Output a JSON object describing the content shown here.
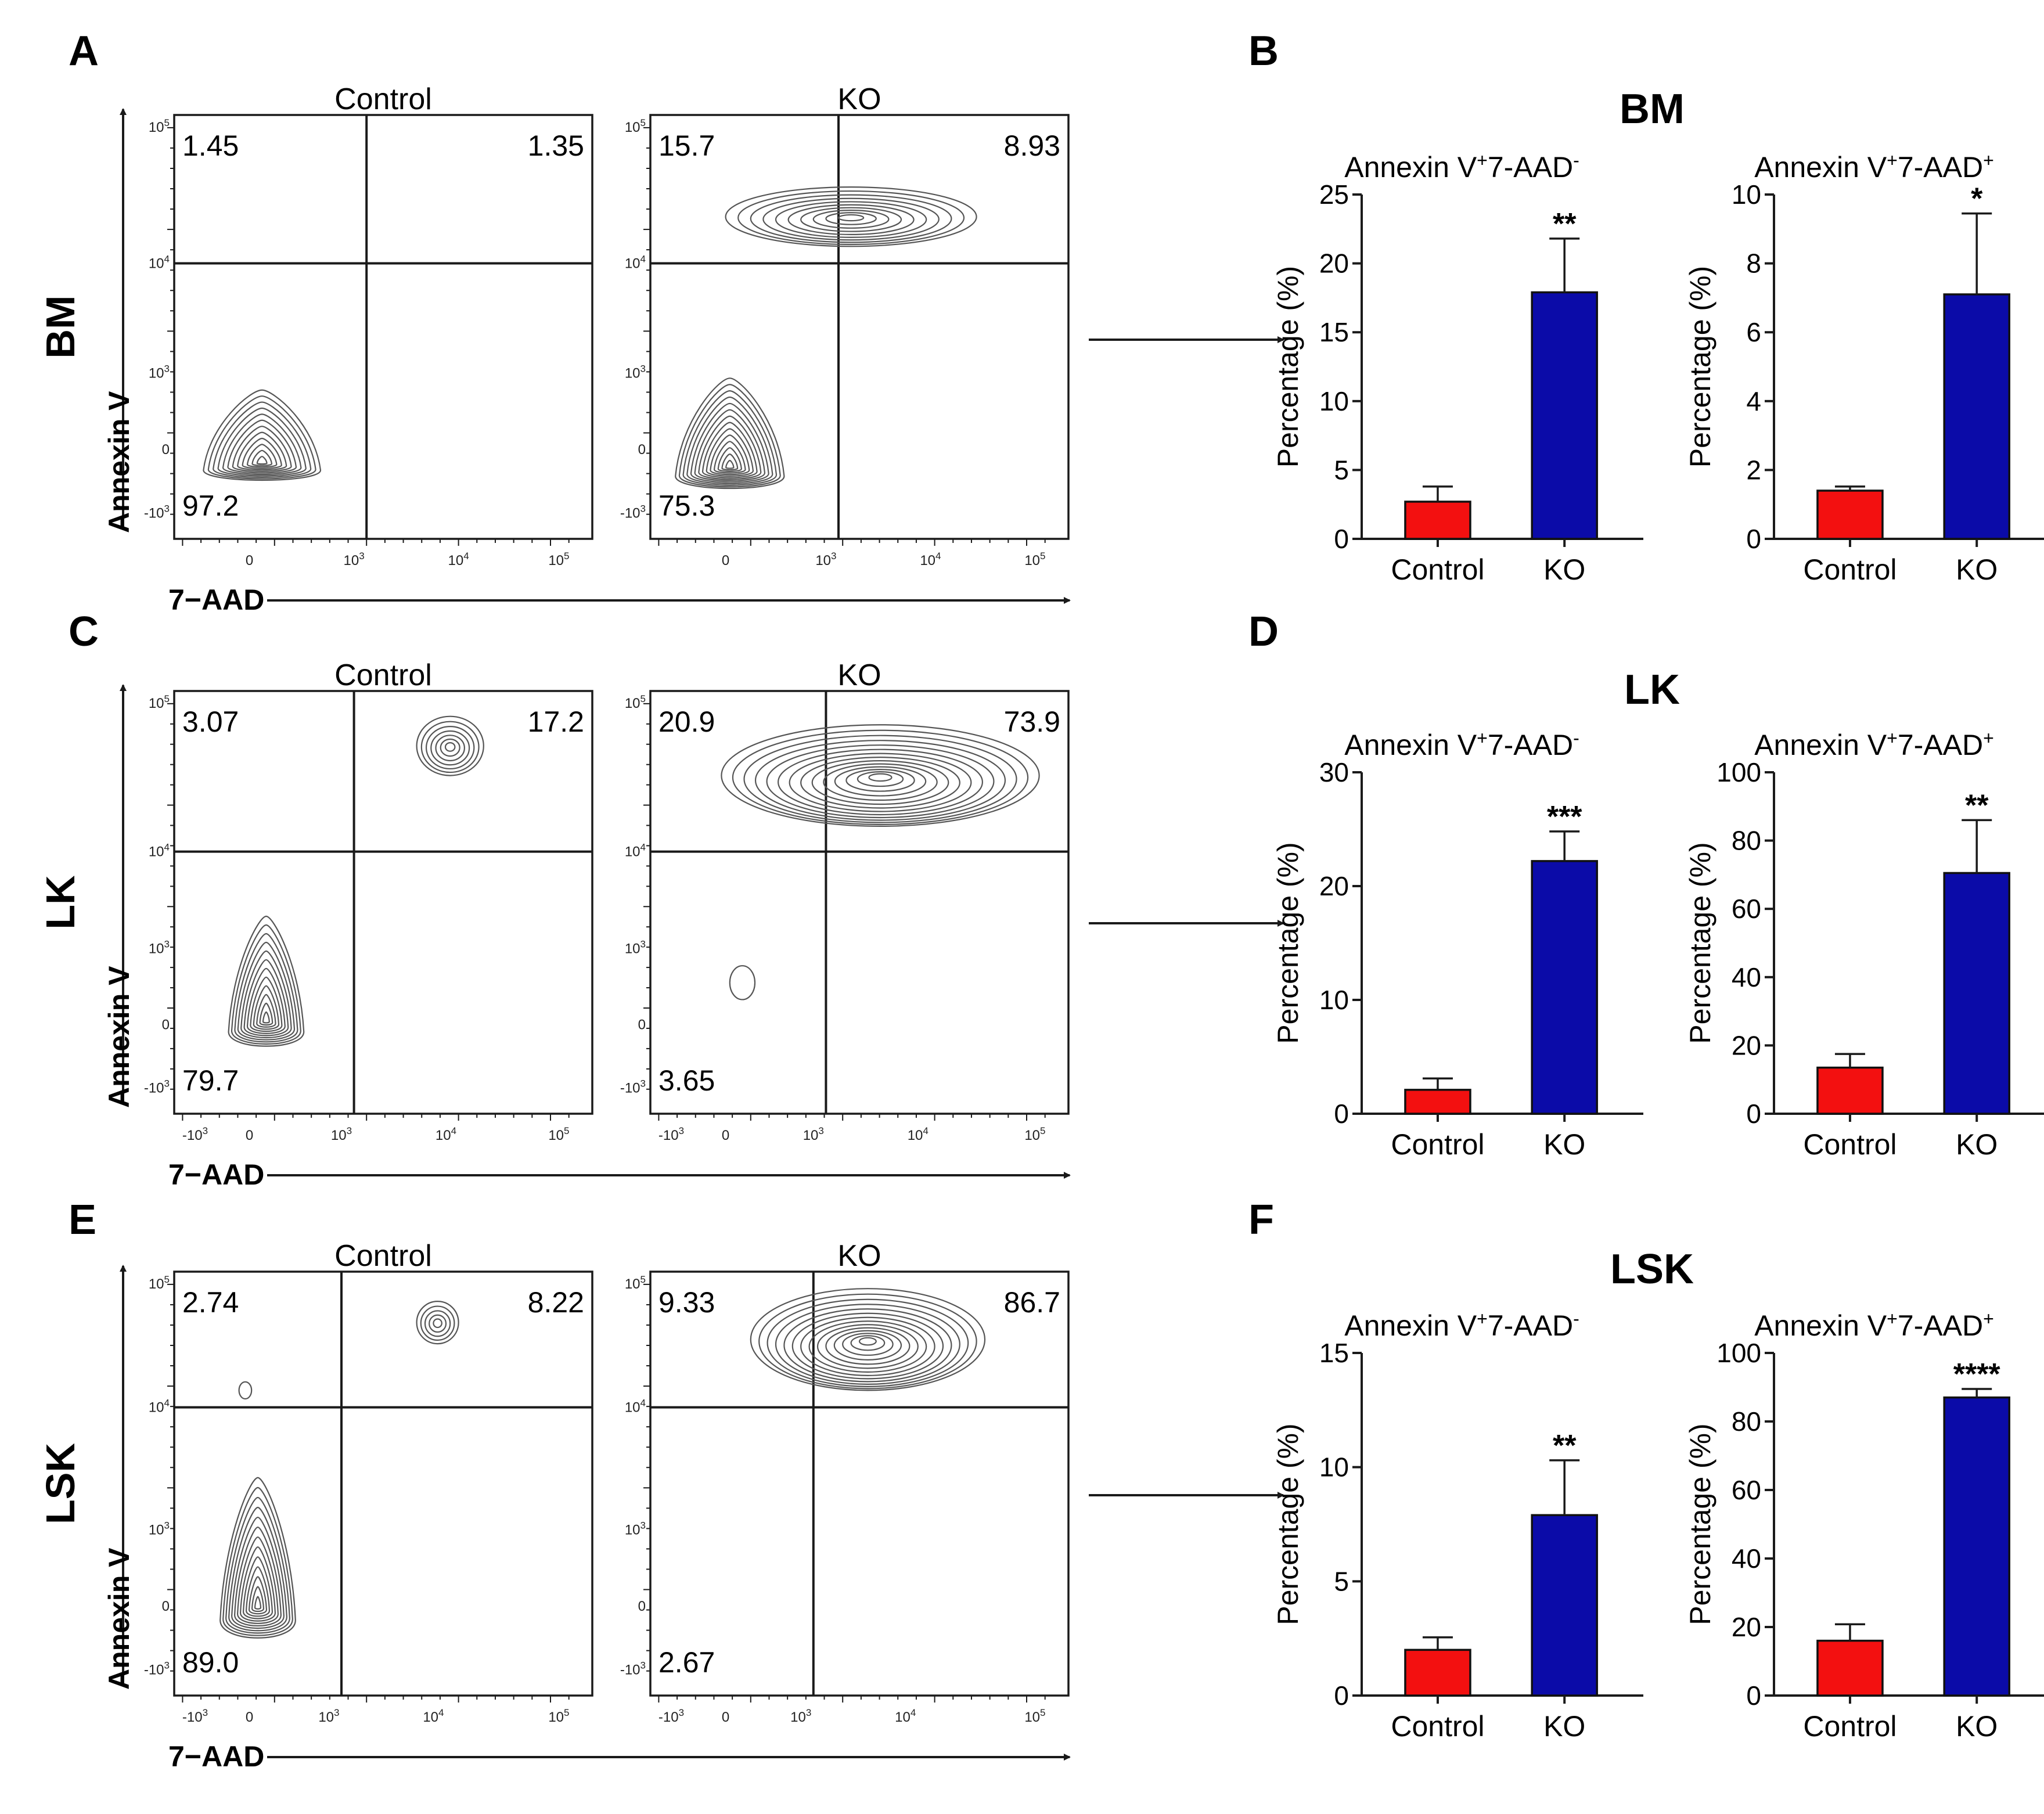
{
  "colors": {
    "control": "#f31010",
    "ko": "#0b0ba8",
    "line": "#1a1a1a",
    "contour": "#555555"
  },
  "flow_panels": [
    {
      "letter": "A",
      "row_label": "BM",
      "x_axis": "7−AAD",
      "y_axis": "Annexin V",
      "show_neg_x": false,
      "plots": [
        {
          "title": "Control",
          "q_tl": "1.45",
          "q_tr": "1.35",
          "q_bl": "97.2",
          "q_br": ""
        },
        {
          "title": "KO",
          "q_tl": "15.7",
          "q_tr": "8.93",
          "q_bl": "75.3",
          "q_br": ""
        }
      ]
    },
    {
      "letter": "C",
      "row_label": "LK",
      "x_axis": "7−AAD",
      "y_axis": "Annexin V",
      "show_neg_x": true,
      "plots": [
        {
          "title": "Control",
          "q_tl": "3.07",
          "q_tr": "17.2",
          "q_bl": "79.7",
          "q_br": ""
        },
        {
          "title": "KO",
          "q_tl": "20.9",
          "q_tr": "73.9",
          "q_bl": "3.65",
          "q_br": ""
        }
      ]
    },
    {
      "letter": "E",
      "row_label": "LSK",
      "x_axis": "7−AAD",
      "y_axis": "Annexin V",
      "show_neg_x": true,
      "plots": [
        {
          "title": "Control",
          "q_tl": "2.74",
          "q_tr": "8.22",
          "q_bl": "89.0",
          "q_br": ""
        },
        {
          "title": "KO",
          "q_tl": "9.33",
          "q_tr": "86.7",
          "q_bl": "2.67",
          "q_br": ""
        }
      ]
    }
  ],
  "axis_ticks": {
    "neg": "-10",
    "zero": "0",
    "base": "10",
    "exp3": "3",
    "exp4": "4",
    "exp5": "5"
  },
  "chart_data": [
    {
      "panel": "B",
      "group": "BM",
      "type": "bar",
      "title_main": "Annexin V",
      "title_sup1": "+",
      "title_mid": "7-AAD",
      "title_sup2": "-",
      "ylabel": "Percentage (%)",
      "categories": [
        "Control",
        "KO"
      ],
      "values": [
        2.7,
        17.9
      ],
      "errors": [
        1.1,
        3.9
      ],
      "significance": "**",
      "ylim": [
        0,
        25
      ],
      "yticks": [
        0,
        5,
        10,
        15,
        20,
        25
      ]
    },
    {
      "panel": "B",
      "group": "BM",
      "type": "bar",
      "title_main": "Annexin V",
      "title_sup1": "+",
      "title_mid": "7-AAD",
      "title_sup2": "+",
      "ylabel": "Percentage (%)",
      "categories": [
        "Control",
        "KO"
      ],
      "values": [
        1.4,
        7.1
      ],
      "errors": [
        0.12,
        2.35
      ],
      "significance": "*",
      "ylim": [
        0,
        10
      ],
      "yticks": [
        0,
        2,
        4,
        6,
        8,
        10
      ]
    },
    {
      "panel": "D",
      "group": "LK",
      "type": "bar",
      "title_main": "Annexin V",
      "title_sup1": "+",
      "title_mid": "7-AAD",
      "title_sup2": "-",
      "ylabel": "Percentage (%)",
      "categories": [
        "Control",
        "KO"
      ],
      "values": [
        2.1,
        22.2
      ],
      "errors": [
        1.0,
        2.6
      ],
      "significance": "***",
      "ylim": [
        0,
        30
      ],
      "yticks": [
        0,
        10,
        20,
        30
      ]
    },
    {
      "panel": "D",
      "group": "LK",
      "type": "bar",
      "title_main": "Annexin V",
      "title_sup1": "+",
      "title_mid": "7-AAD",
      "title_sup2": "+",
      "ylabel": "Percentage (%)",
      "categories": [
        "Control",
        "KO"
      ],
      "values": [
        13.5,
        70.5
      ],
      "errors": [
        4.0,
        15.5
      ],
      "significance": "**",
      "ylim": [
        0,
        100
      ],
      "yticks": [
        0,
        20,
        40,
        60,
        80,
        100
      ]
    },
    {
      "panel": "F",
      "group": "LSK",
      "type": "bar",
      "title_main": "Annexin V",
      "title_sup1": "+",
      "title_mid": "7-AAD",
      "title_sup2": "-",
      "ylabel": "Percentage (%)",
      "categories": [
        "Control",
        "KO"
      ],
      "values": [
        2.0,
        7.9
      ],
      "errors": [
        0.55,
        2.4
      ],
      "significance": "**",
      "ylim": [
        0,
        15
      ],
      "yticks": [
        0,
        5,
        10,
        15
      ]
    },
    {
      "panel": "F",
      "group": "LSK",
      "type": "bar",
      "title_main": "Annexin V",
      "title_sup1": "+",
      "title_mid": "7-AAD",
      "title_sup2": "+",
      "ylabel": "Percentage (%)",
      "categories": [
        "Control",
        "KO"
      ],
      "values": [
        16.0,
        87.0
      ],
      "errors": [
        4.8,
        2.5
      ],
      "significance": "****",
      "ylim": [
        0,
        100
      ],
      "yticks": [
        0,
        20,
        40,
        60,
        80,
        100
      ]
    }
  ]
}
